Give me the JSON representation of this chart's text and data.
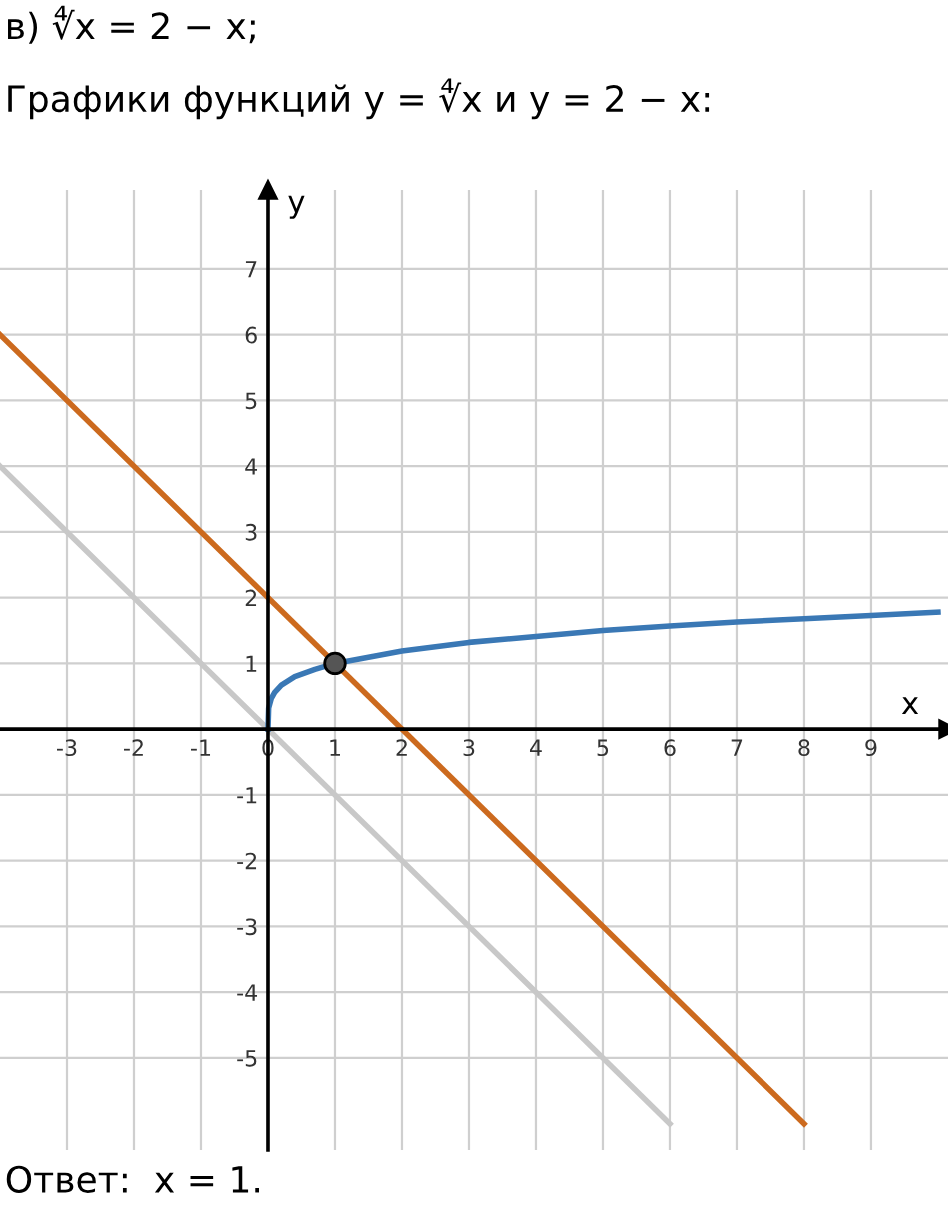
{
  "chart_data": {
    "type": "line",
    "title": "в) ∜x = 2 − x;",
    "subtitle": "Графики функций y = ∜x и y = 2 − x:",
    "xlabel": "x",
    "ylabel": "y",
    "annotations": [
      "Ответ:  x = 1."
    ],
    "xlim": [
      -4,
      10.15
    ],
    "ylim": [
      -6.4,
      8.2
    ],
    "xticks": [
      -3,
      -2,
      -1,
      0,
      1,
      2,
      3,
      4,
      5,
      6,
      7,
      8,
      9
    ],
    "yticks": [
      -5,
      -4,
      -3,
      -2,
      -1,
      {
        "value": 0,
        "label": null
      },
      1,
      2,
      3,
      4,
      5,
      6,
      7
    ],
    "grid": true,
    "line_style": "solid",
    "marker": "none",
    "series": [
      {
        "color": "#c8c8c8",
        "x": [
          -4,
          6
        ],
        "values": [
          4,
          -6
        ]
      },
      {
        "color": "#cc6a1e",
        "x": [
          -4,
          8
        ],
        "values": [
          6,
          -6
        ]
      },
      {
        "color": "#3a78b5",
        "x": [
          0,
          0.01,
          0.05,
          0.1,
          0.2,
          0.4,
          0.7,
          1,
          2,
          3,
          4,
          5,
          6,
          7,
          8,
          9,
          10
        ],
        "values": [
          0,
          0.32,
          0.47,
          0.56,
          0.67,
          0.8,
          0.91,
          1,
          1.19,
          1.32,
          1.41,
          1.5,
          1.57,
          1.63,
          1.68,
          1.73,
          1.78
        ]
      },
      {
        "type": "scatter",
        "marker": "circle",
        "color": "#555555",
        "x": [
          1
        ],
        "values": [
          1
        ]
      }
    ]
  }
}
